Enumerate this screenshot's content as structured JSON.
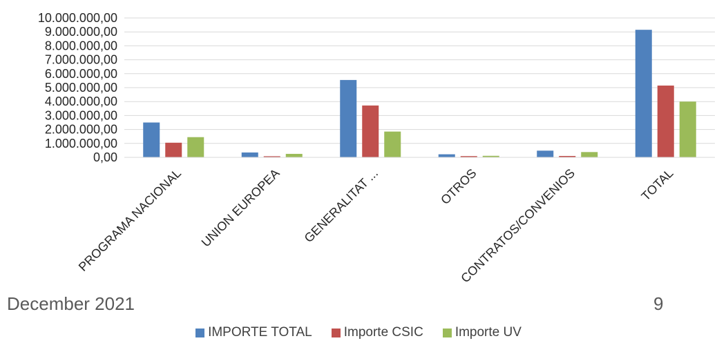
{
  "chart_data": {
    "type": "bar",
    "categories": [
      "PROGRAMA NACIONAL",
      "UNION EUROPEA",
      "GENERALITAT ...",
      "OTROS",
      "CONTRATOS/CONVENIOS",
      "TOTAL"
    ],
    "series": [
      {
        "name": "IMPORTE TOTAL",
        "color": "#4f81bd",
        "values": [
          2500000,
          350000,
          5550000,
          220000,
          480000,
          9150000
        ]
      },
      {
        "name": "Importe CSIC",
        "color": "#c0504d",
        "values": [
          1050000,
          80000,
          3720000,
          90000,
          100000,
          5150000
        ]
      },
      {
        "name": "Importe UV",
        "color": "#9bbb59",
        "values": [
          1450000,
          250000,
          1850000,
          110000,
          380000,
          4000000
        ]
      }
    ],
    "ylim": [
      0,
      10000000
    ],
    "yticks": [
      "0,00",
      "1.000.000,00",
      "2.000.000,00",
      "3.000.000,00",
      "4.000.000,00",
      "5.000.000,00",
      "6.000.000,00",
      "7.000.000,00",
      "8.000.000,00",
      "9.000.000,00",
      "10.000.000,00"
    ],
    "grid": true,
    "legend_position": "bottom"
  },
  "footer": {
    "date": "December  2021",
    "page": "9"
  }
}
